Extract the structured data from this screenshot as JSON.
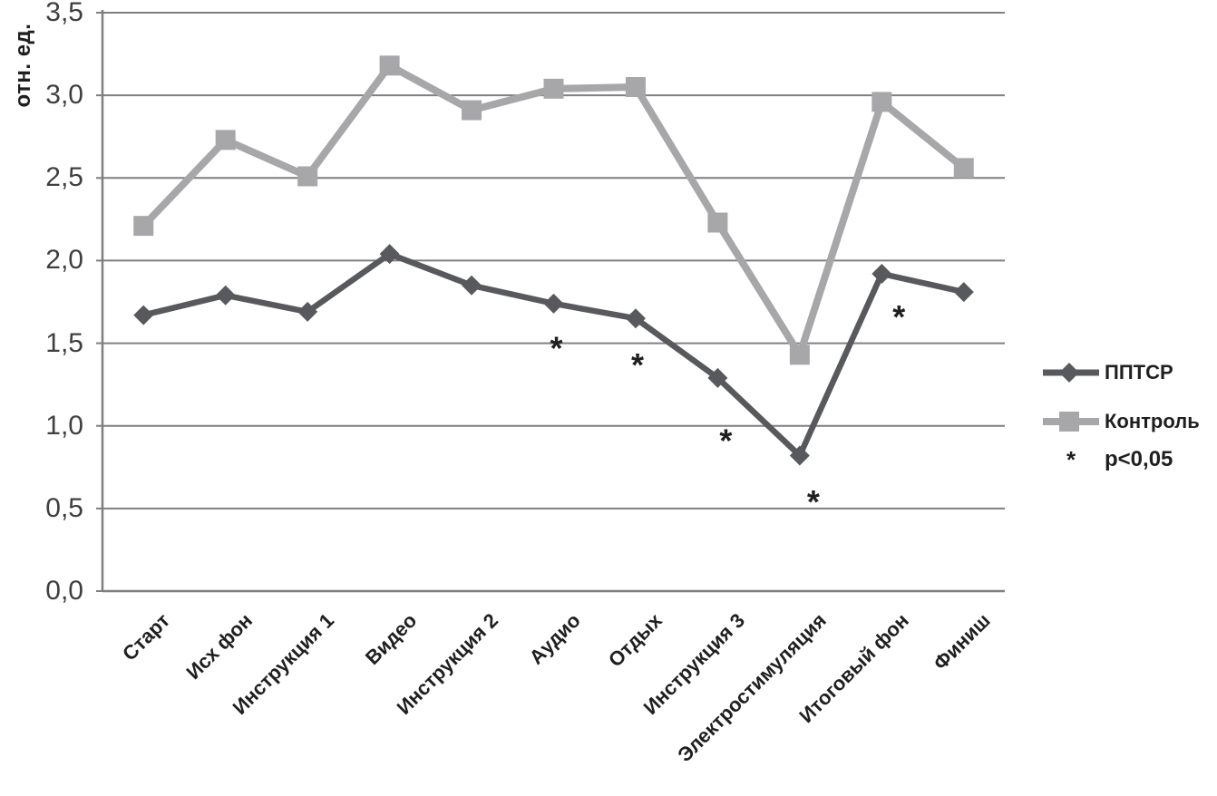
{
  "chart_data": {
    "type": "line",
    "title": "",
    "xlabel": "",
    "ylabel": "отн. ед.",
    "ylim": [
      0,
      3.5
    ],
    "yticks": [
      "0,0",
      "0,5",
      "1,0",
      "1,5",
      "2,0",
      "2,5",
      "3,0",
      "3,5"
    ],
    "ytick_values": [
      0,
      0.5,
      1,
      1.5,
      2,
      2.5,
      3,
      3.5
    ],
    "grid": "horizontal",
    "legend_position": "right",
    "categories": [
      "Старт",
      "Исх фон",
      "Инструкция 1",
      "Видео",
      "Инструкция 2",
      "Аудио",
      "Отдых",
      "Инструкция 3",
      "Электростимуляция",
      "Итоговый фон",
      "Финиш"
    ],
    "series": [
      {
        "name": "ППТСР",
        "marker": "diamond",
        "color": "#58595c",
        "values": [
          1.67,
          1.79,
          1.69,
          2.04,
          1.85,
          1.74,
          1.65,
          1.29,
          0.82,
          1.92,
          1.81
        ]
      },
      {
        "name": "Контроль",
        "marker": "square",
        "color": "#a7a7aa",
        "values": [
          2.21,
          2.73,
          2.51,
          3.18,
          2.91,
          3.04,
          3.05,
          2.23,
          1.43,
          2.96,
          2.56
        ]
      }
    ],
    "annotations": {
      "symbol": "*",
      "note": "p<0,05",
      "points": [
        {
          "category": "Аудио",
          "index": 5,
          "value": 1.5,
          "dx": 3
        },
        {
          "category": "Отдых",
          "index": 6,
          "value": 1.4,
          "dx": 2
        },
        {
          "category": "Инструкция 3",
          "index": 7,
          "value": 0.94,
          "dx": 9
        },
        {
          "category": "Электростимуляция",
          "index": 8,
          "value": 0.57,
          "dx": 15
        },
        {
          "category": "Итоговый фон",
          "index": 9,
          "value": 1.69,
          "dx": 19
        }
      ]
    },
    "axis_color": "#7f7f7f",
    "text_color": "#1f1f1f"
  }
}
